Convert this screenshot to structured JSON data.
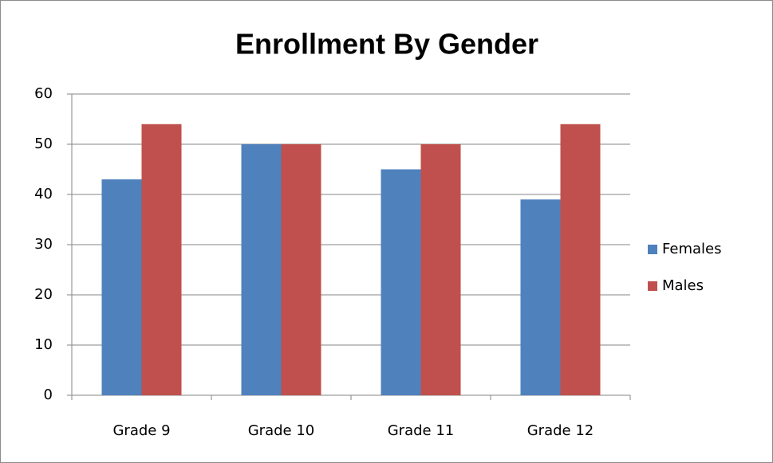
{
  "chart_data": {
    "type": "bar",
    "title": "Enrollment By Gender",
    "categories": [
      "Grade 9",
      "Grade 10",
      "Grade 11",
      "Grade 12"
    ],
    "series": [
      {
        "name": "Females",
        "color": "#4f81bd",
        "values": [
          43,
          50,
          45,
          39
        ]
      },
      {
        "name": "Males",
        "color": "#c0504d",
        "values": [
          54,
          50,
          50,
          54
        ]
      }
    ],
    "ylim": [
      0,
      60
    ],
    "yticks": [
      0,
      10,
      20,
      30,
      40,
      50,
      60
    ],
    "grid": true,
    "legend": "right"
  }
}
